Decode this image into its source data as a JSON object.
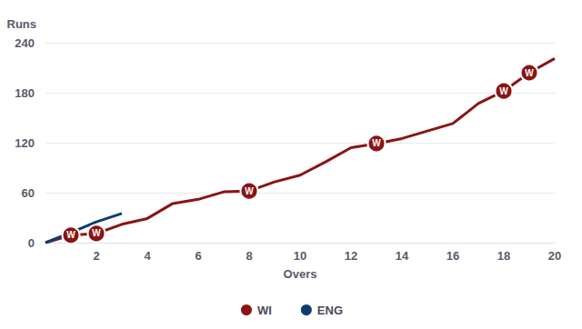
{
  "chart_data": {
    "type": "line",
    "x_label": "Overs",
    "y_label": "Runs",
    "x": [
      0,
      1,
      2,
      3,
      4,
      5,
      6,
      7,
      8,
      9,
      10,
      11,
      12,
      13,
      14,
      15,
      16,
      17,
      18,
      19,
      20
    ],
    "series": [
      {
        "name": "WI",
        "color": "#8b1414",
        "values": [
          0,
          9,
          11,
          22,
          29,
          47,
          52,
          61,
          62,
          73,
          81,
          97,
          114,
          119,
          125,
          134,
          143,
          167,
          182,
          204,
          221
        ],
        "wickets": [
          1,
          2,
          8,
          13,
          18,
          19
        ]
      },
      {
        "name": "ENG",
        "color": "#0f3c6e",
        "values": [
          0,
          12,
          25,
          35,
          null,
          null,
          null,
          null,
          null,
          null,
          null,
          null,
          null,
          null,
          null,
          null,
          null,
          null,
          null,
          null,
          null
        ],
        "wickets": []
      }
    ],
    "wicket_label": "W",
    "xlim": [
      0,
      20
    ],
    "xticks": [
      2,
      4,
      6,
      8,
      10,
      12,
      14,
      16,
      18,
      20
    ],
    "ylim": [
      0,
      240
    ],
    "yticks": [
      0,
      60,
      120,
      180,
      240
    ],
    "grid": true,
    "legend": "bottom"
  }
}
